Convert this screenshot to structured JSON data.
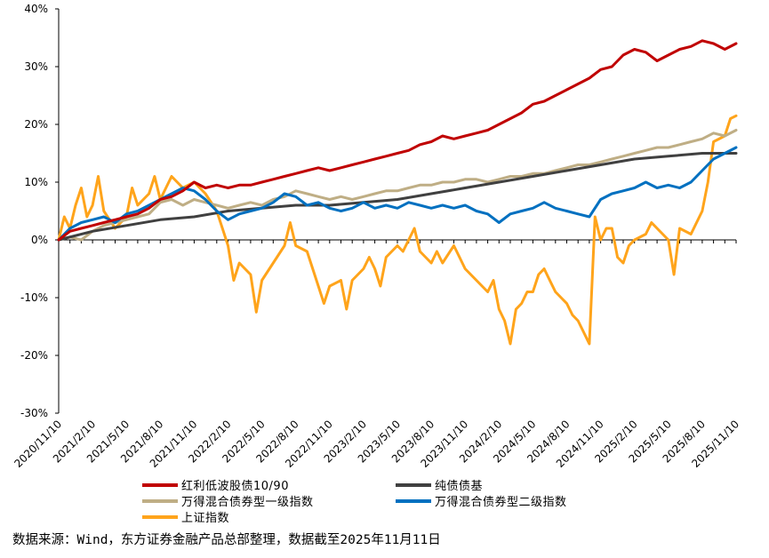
{
  "chart_data": {
    "type": "line",
    "title": "",
    "xlabel": "",
    "ylabel": "",
    "ylim": [
      -30,
      40
    ],
    "yticks": [
      -30,
      -20,
      -10,
      0,
      10,
      20,
      30,
      40
    ],
    "ytick_labels": [
      "-30%",
      "-20%",
      "-10%",
      "0%",
      "10%",
      "20%",
      "30%",
      "40%"
    ],
    "x_range_months": [
      0,
      60
    ],
    "x_ticks": [
      {
        "label": "2020/11/10",
        "m": 0
      },
      {
        "label": "2021/2/10",
        "m": 3
      },
      {
        "label": "2021/5/10",
        "m": 6
      },
      {
        "label": "2021/8/10",
        "m": 9
      },
      {
        "label": "2021/11/10",
        "m": 12
      },
      {
        "label": "2022/2/10",
        "m": 15
      },
      {
        "label": "2022/5/10",
        "m": 18
      },
      {
        "label": "2022/8/10",
        "m": 21
      },
      {
        "label": "2022/11/10",
        "m": 24
      },
      {
        "label": "2023/2/10",
        "m": 27
      },
      {
        "label": "2023/5/10",
        "m": 30
      },
      {
        "label": "2023/8/10",
        "m": 33
      },
      {
        "label": "2023/11/10",
        "m": 36
      },
      {
        "label": "2024/2/10",
        "m": 39
      },
      {
        "label": "2024/5/10",
        "m": 42
      },
      {
        "label": "2024/8/10",
        "m": 45
      },
      {
        "label": "2024/11/10",
        "m": 48
      },
      {
        "label": "2025/2/10",
        "m": 51
      },
      {
        "label": "2025/5/10",
        "m": 54
      },
      {
        "label": "2025/8/10",
        "m": 57
      },
      {
        "label": "2025/11/10",
        "m": 60
      }
    ],
    "legend_position": "bottom",
    "series": [
      {
        "name": "红利低波股债10/90",
        "color": "#C00000",
        "points": [
          [
            0,
            0
          ],
          [
            1,
            1.5
          ],
          [
            2,
            2
          ],
          [
            3,
            2.5
          ],
          [
            4,
            3
          ],
          [
            5,
            3.5
          ],
          [
            6,
            4
          ],
          [
            7,
            4.5
          ],
          [
            8,
            5.5
          ],
          [
            9,
            7
          ],
          [
            10,
            7.5
          ],
          [
            11,
            8.5
          ],
          [
            12,
            10
          ],
          [
            13,
            9
          ],
          [
            14,
            9.5
          ],
          [
            15,
            9
          ],
          [
            16,
            9.5
          ],
          [
            17,
            9.5
          ],
          [
            18,
            10
          ],
          [
            19,
            10.5
          ],
          [
            20,
            11
          ],
          [
            21,
            11.5
          ],
          [
            22,
            12
          ],
          [
            23,
            12.5
          ],
          [
            24,
            12
          ],
          [
            25,
            12.5
          ],
          [
            26,
            13
          ],
          [
            27,
            13.5
          ],
          [
            28,
            14
          ],
          [
            29,
            14.5
          ],
          [
            30,
            15
          ],
          [
            31,
            15.5
          ],
          [
            32,
            16.5
          ],
          [
            33,
            17
          ],
          [
            34,
            18
          ],
          [
            35,
            17.5
          ],
          [
            36,
            18
          ],
          [
            37,
            18.5
          ],
          [
            38,
            19
          ],
          [
            39,
            20
          ],
          [
            40,
            21
          ],
          [
            41,
            22
          ],
          [
            42,
            23.5
          ],
          [
            43,
            24
          ],
          [
            44,
            25
          ],
          [
            45,
            26
          ],
          [
            46,
            27
          ],
          [
            47,
            28
          ],
          [
            48,
            29.5
          ],
          [
            49,
            30
          ],
          [
            50,
            32
          ],
          [
            51,
            33
          ],
          [
            52,
            32.5
          ],
          [
            53,
            31
          ],
          [
            54,
            32
          ],
          [
            55,
            33
          ],
          [
            56,
            33.5
          ],
          [
            57,
            34.5
          ],
          [
            58,
            34
          ],
          [
            59,
            33
          ],
          [
            60,
            34
          ]
        ]
      },
      {
        "name": "纯债债基",
        "color": "#404040",
        "points": [
          [
            0,
            0
          ],
          [
            3,
            1.5
          ],
          [
            6,
            2.5
          ],
          [
            9,
            3.5
          ],
          [
            12,
            4
          ],
          [
            15,
            5
          ],
          [
            18,
            5.5
          ],
          [
            21,
            6
          ],
          [
            24,
            6
          ],
          [
            27,
            6.5
          ],
          [
            30,
            7
          ],
          [
            33,
            8
          ],
          [
            36,
            9
          ],
          [
            39,
            10
          ],
          [
            42,
            11
          ],
          [
            45,
            12
          ],
          [
            48,
            13
          ],
          [
            51,
            14
          ],
          [
            54,
            14.5
          ],
          [
            57,
            15
          ],
          [
            60,
            15
          ]
        ]
      },
      {
        "name": "万得混合债券型一级指数",
        "color": "#BFAE85",
        "points": [
          [
            0,
            0
          ],
          [
            1,
            0.5
          ],
          [
            2,
            0
          ],
          [
            3,
            1.5
          ],
          [
            4,
            2.5
          ],
          [
            5,
            3
          ],
          [
            6,
            3.5
          ],
          [
            7,
            4
          ],
          [
            8,
            4.5
          ],
          [
            9,
            6.5
          ],
          [
            10,
            7
          ],
          [
            11,
            6
          ],
          [
            12,
            7
          ],
          [
            13,
            6.5
          ],
          [
            14,
            6
          ],
          [
            15,
            5.5
          ],
          [
            16,
            6
          ],
          [
            17,
            6.5
          ],
          [
            18,
            6
          ],
          [
            19,
            7
          ],
          [
            20,
            7.5
          ],
          [
            21,
            8.5
          ],
          [
            22,
            8
          ],
          [
            23,
            7.5
          ],
          [
            24,
            7
          ],
          [
            25,
            7.5
          ],
          [
            26,
            7
          ],
          [
            27,
            7.5
          ],
          [
            28,
            8
          ],
          [
            29,
            8.5
          ],
          [
            30,
            8.5
          ],
          [
            31,
            9
          ],
          [
            32,
            9.5
          ],
          [
            33,
            9.5
          ],
          [
            34,
            10
          ],
          [
            35,
            10
          ],
          [
            36,
            10.5
          ],
          [
            37,
            10.5
          ],
          [
            38,
            10
          ],
          [
            39,
            10.5
          ],
          [
            40,
            11
          ],
          [
            41,
            11
          ],
          [
            42,
            11.5
          ],
          [
            43,
            11.5
          ],
          [
            44,
            12
          ],
          [
            45,
            12.5
          ],
          [
            46,
            13
          ],
          [
            47,
            13
          ],
          [
            48,
            13.5
          ],
          [
            49,
            14
          ],
          [
            50,
            14.5
          ],
          [
            51,
            15
          ],
          [
            52,
            15.5
          ],
          [
            53,
            16
          ],
          [
            54,
            16
          ],
          [
            55,
            16.5
          ],
          [
            56,
            17
          ],
          [
            57,
            17.5
          ],
          [
            58,
            18.5
          ],
          [
            59,
            18
          ],
          [
            60,
            19
          ]
        ]
      },
      {
        "name": "万得混合债券型二级指数",
        "color": "#0070C0",
        "points": [
          [
            0,
            0
          ],
          [
            1,
            2
          ],
          [
            2,
            3
          ],
          [
            3,
            3.5
          ],
          [
            4,
            4
          ],
          [
            5,
            3
          ],
          [
            6,
            4.5
          ],
          [
            7,
            5
          ],
          [
            8,
            6
          ],
          [
            9,
            7
          ],
          [
            10,
            8
          ],
          [
            11,
            9
          ],
          [
            12,
            8.5
          ],
          [
            13,
            7
          ],
          [
            14,
            5
          ],
          [
            15,
            3.5
          ],
          [
            16,
            4.5
          ],
          [
            17,
            5
          ],
          [
            18,
            5.5
          ],
          [
            19,
            6.5
          ],
          [
            20,
            8
          ],
          [
            21,
            7.5
          ],
          [
            22,
            6
          ],
          [
            23,
            6.5
          ],
          [
            24,
            5.5
          ],
          [
            25,
            5
          ],
          [
            26,
            5.5
          ],
          [
            27,
            6.5
          ],
          [
            28,
            5.5
          ],
          [
            29,
            6
          ],
          [
            30,
            5.5
          ],
          [
            31,
            6.5
          ],
          [
            32,
            6
          ],
          [
            33,
            5.5
          ],
          [
            34,
            6
          ],
          [
            35,
            5.5
          ],
          [
            36,
            6
          ],
          [
            37,
            5
          ],
          [
            38,
            4.5
          ],
          [
            39,
            3
          ],
          [
            40,
            4.5
          ],
          [
            41,
            5
          ],
          [
            42,
            5.5
          ],
          [
            43,
            6.5
          ],
          [
            44,
            5.5
          ],
          [
            45,
            5
          ],
          [
            46,
            4.5
          ],
          [
            47,
            4
          ],
          [
            48,
            7
          ],
          [
            49,
            8
          ],
          [
            50,
            8.5
          ],
          [
            51,
            9
          ],
          [
            52,
            10
          ],
          [
            53,
            9
          ],
          [
            54,
            9.5
          ],
          [
            55,
            9
          ],
          [
            56,
            10
          ],
          [
            57,
            12
          ],
          [
            58,
            14
          ],
          [
            59,
            15
          ],
          [
            60,
            16
          ]
        ]
      },
      {
        "name": "上证指数",
        "color": "#FFA41B",
        "points": [
          [
            0,
            0
          ],
          [
            0.5,
            4
          ],
          [
            1,
            2
          ],
          [
            1.5,
            6
          ],
          [
            2,
            9
          ],
          [
            2.5,
            4
          ],
          [
            3,
            6
          ],
          [
            3.5,
            11
          ],
          [
            4,
            5
          ],
          [
            5,
            2
          ],
          [
            6,
            4
          ],
          [
            6.5,
            9
          ],
          [
            7,
            6
          ],
          [
            8,
            8
          ],
          [
            8.5,
            11
          ],
          [
            9,
            7
          ],
          [
            10,
            11
          ],
          [
            11,
            9
          ],
          [
            12,
            10
          ],
          [
            13,
            8
          ],
          [
            14,
            5
          ],
          [
            14.5,
            2
          ],
          [
            15,
            -1
          ],
          [
            15.5,
            -7
          ],
          [
            16,
            -4
          ],
          [
            17,
            -6
          ],
          [
            17.5,
            -12.5
          ],
          [
            18,
            -7
          ],
          [
            19,
            -4
          ],
          [
            20,
            -1
          ],
          [
            20.5,
            3
          ],
          [
            21,
            -1
          ],
          [
            22,
            -2
          ],
          [
            23,
            -8
          ],
          [
            23.5,
            -11
          ],
          [
            24,
            -8
          ],
          [
            25,
            -7
          ],
          [
            25.5,
            -12
          ],
          [
            26,
            -7
          ],
          [
            27,
            -5
          ],
          [
            27.5,
            -3
          ],
          [
            28,
            -5
          ],
          [
            28.5,
            -8
          ],
          [
            29,
            -3
          ],
          [
            30,
            -1
          ],
          [
            30.5,
            -2
          ],
          [
            31,
            0
          ],
          [
            31.5,
            2
          ],
          [
            32,
            -2
          ],
          [
            33,
            -4
          ],
          [
            33.5,
            -2
          ],
          [
            34,
            -4
          ],
          [
            35,
            -1
          ],
          [
            35.5,
            -3
          ],
          [
            36,
            -5
          ],
          [
            37,
            -7
          ],
          [
            38,
            -9
          ],
          [
            38.5,
            -7
          ],
          [
            39,
            -12
          ],
          [
            39.5,
            -14
          ],
          [
            40,
            -18
          ],
          [
            40.5,
            -12
          ],
          [
            41,
            -11
          ],
          [
            41.5,
            -9
          ],
          [
            42,
            -9
          ],
          [
            42.5,
            -6
          ],
          [
            43,
            -5
          ],
          [
            43.5,
            -7
          ],
          [
            44,
            -9
          ],
          [
            45,
            -11
          ],
          [
            45.5,
            -13
          ],
          [
            46,
            -14
          ],
          [
            46.5,
            -16
          ],
          [
            47,
            -18
          ],
          [
            47.5,
            4
          ],
          [
            48,
            0
          ],
          [
            48.5,
            2
          ],
          [
            49,
            2
          ],
          [
            49.5,
            -3
          ],
          [
            50,
            -4
          ],
          [
            50.5,
            -1
          ],
          [
            51,
            0
          ],
          [
            52,
            1
          ],
          [
            52.5,
            3
          ],
          [
            53,
            2
          ],
          [
            54,
            0
          ],
          [
            54.5,
            -6
          ],
          [
            55,
            2
          ],
          [
            56,
            1
          ],
          [
            57,
            5
          ],
          [
            57.5,
            10
          ],
          [
            58,
            17
          ],
          [
            59,
            18
          ],
          [
            59.5,
            21
          ],
          [
            60,
            21.5
          ]
        ]
      }
    ]
  },
  "footer": {
    "source": "数据来源：Wind，东方证券金融产品总部整理，数据截至2025年11月11日"
  }
}
